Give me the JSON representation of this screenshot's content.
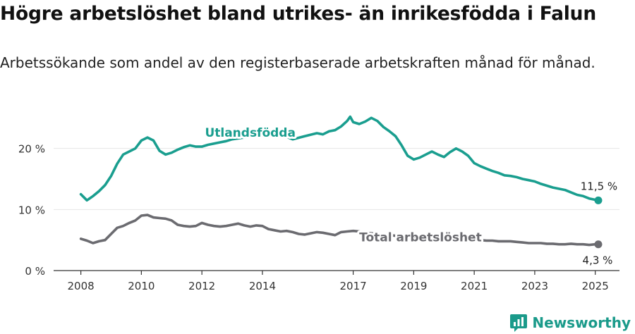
{
  "title": "Högre arbetslöshet bland utrikes- än inrikesfödda i Falun",
  "subtitle": "Arbetssökande som andel av den registerbaserade arbetskraften månad för månad.",
  "brand": {
    "name": "Newsworthy"
  },
  "colors": {
    "foreign_born": "#1a9e8f",
    "total": "#6b6b70",
    "axis": "#333333",
    "grid": "#e6e6e6"
  },
  "chart_data": {
    "type": "line",
    "x_unit": "year",
    "x_ticks": [
      2008,
      2010,
      2012,
      2014,
      2017,
      2019,
      2021,
      2023,
      2025
    ],
    "x_tick_labels": [
      "2008",
      "2010",
      "2012",
      "2014",
      "2017",
      "2019",
      "2021",
      "2023",
      "2025"
    ],
    "xlim": [
      2007.1,
      2025.8
    ],
    "ylim": [
      0,
      24
    ],
    "y_ticks": [
      0,
      10,
      20
    ],
    "y_tick_labels": [
      "0 %",
      "10 %",
      "20 %"
    ],
    "grid": false,
    "series": [
      {
        "name": "Utlandsfödda",
        "color": "#1a9e8f",
        "end_label": "11,5 %",
        "x": [
          2008.0,
          2008.2,
          2008.4,
          2008.6,
          2008.8,
          2009.0,
          2009.2,
          2009.4,
          2009.6,
          2009.8,
          2010.0,
          2010.2,
          2010.4,
          2010.6,
          2010.8,
          2011.0,
          2011.2,
          2011.4,
          2011.6,
          2011.8,
          2012.0,
          2012.2,
          2012.4,
          2012.6,
          2012.8,
          2013.0,
          2013.4,
          2013.8,
          2014.2,
          2014.6,
          2015.0,
          2015.4,
          2015.8,
          2016.0,
          2016.2,
          2016.4,
          2016.6,
          2016.8,
          2016.9,
          2017.0,
          2017.2,
          2017.4,
          2017.6,
          2017.8,
          2018.0,
          2018.2,
          2018.4,
          2018.6,
          2018.8,
          2019.0,
          2019.2,
          2019.4,
          2019.6,
          2019.8,
          2020.0,
          2020.2,
          2020.4,
          2020.6,
          2020.8,
          2021.0,
          2021.2,
          2021.4,
          2021.6,
          2021.8,
          2022.0,
          2022.2,
          2022.4,
          2022.6,
          2022.8,
          2023.0,
          2023.2,
          2023.4,
          2023.6,
          2023.8,
          2024.0,
          2024.2,
          2024.4,
          2024.6,
          2024.8,
          2025.0,
          2025.1
        ],
        "y": [
          12.5,
          11.5,
          12.2,
          13.0,
          14.0,
          15.5,
          17.5,
          19.0,
          19.5,
          20.0,
          21.3,
          21.8,
          21.3,
          19.6,
          19.0,
          19.3,
          19.8,
          20.2,
          20.5,
          20.3,
          20.3,
          20.6,
          20.8,
          21.0,
          21.2,
          21.5,
          21.8,
          22.0,
          22.2,
          22.3,
          21.5,
          22.0,
          22.5,
          22.3,
          22.8,
          23.0,
          23.6,
          24.5,
          25.2,
          24.3,
          24.0,
          24.4,
          25.0,
          24.5,
          23.5,
          22.8,
          22.0,
          20.5,
          18.8,
          18.2,
          18.5,
          19.0,
          19.5,
          19.0,
          18.6,
          19.4,
          20.0,
          19.5,
          18.8,
          17.6,
          17.1,
          16.7,
          16.3,
          16.0,
          15.6,
          15.5,
          15.3,
          15.0,
          14.8,
          14.6,
          14.2,
          13.9,
          13.6,
          13.4,
          13.2,
          12.8,
          12.4,
          12.2,
          11.8,
          11.6,
          11.5
        ]
      },
      {
        "name": "Total arbetslöshet",
        "color": "#6b6b70",
        "end_label": "4,3 %",
        "x": [
          2008.0,
          2008.2,
          2008.4,
          2008.6,
          2008.8,
          2009.0,
          2009.2,
          2009.4,
          2009.6,
          2009.8,
          2010.0,
          2010.2,
          2010.4,
          2010.6,
          2010.8,
          2011.0,
          2011.2,
          2011.4,
          2011.6,
          2011.8,
          2012.0,
          2012.2,
          2012.4,
          2012.6,
          2012.8,
          2013.0,
          2013.2,
          2013.4,
          2013.6,
          2013.8,
          2014.0,
          2014.2,
          2014.4,
          2014.6,
          2014.8,
          2015.0,
          2015.2,
          2015.4,
          2015.6,
          2015.8,
          2016.0,
          2016.2,
          2016.4,
          2016.6,
          2016.8,
          2017.0,
          2017.2,
          2017.4,
          2017.6,
          2017.8,
          2018.0,
          2018.2,
          2018.4,
          2018.6,
          2018.8,
          2019.0,
          2019.2,
          2019.4,
          2019.6,
          2019.8,
          2020.0,
          2020.2,
          2020.4,
          2020.6,
          2020.8,
          2021.0,
          2021.2,
          2021.4,
          2021.6,
          2021.8,
          2022.0,
          2022.2,
          2022.4,
          2022.6,
          2022.8,
          2023.0,
          2023.2,
          2023.4,
          2023.6,
          2023.8,
          2024.0,
          2024.2,
          2024.4,
          2024.6,
          2024.8,
          2025.0,
          2025.1
        ],
        "y": [
          5.2,
          4.9,
          4.5,
          4.8,
          5.0,
          6.0,
          7.0,
          7.3,
          7.8,
          8.2,
          9.0,
          9.1,
          8.7,
          8.6,
          8.5,
          8.2,
          7.5,
          7.3,
          7.2,
          7.3,
          7.8,
          7.5,
          7.3,
          7.2,
          7.3,
          7.5,
          7.7,
          7.4,
          7.2,
          7.4,
          7.3,
          6.8,
          6.6,
          6.4,
          6.5,
          6.3,
          6.0,
          5.9,
          6.1,
          6.3,
          6.2,
          6.0,
          5.8,
          6.3,
          6.4,
          6.5,
          6.4,
          6.2,
          6.1,
          6.0,
          5.9,
          5.8,
          5.7,
          5.5,
          5.4,
          5.3,
          5.2,
          5.3,
          5.3,
          5.2,
          5.2,
          5.1,
          5.2,
          5.3,
          5.2,
          5.1,
          5.0,
          4.9,
          4.9,
          4.8,
          4.8,
          4.8,
          4.7,
          4.6,
          4.5,
          4.5,
          4.5,
          4.4,
          4.4,
          4.3,
          4.3,
          4.4,
          4.3,
          4.3,
          4.2,
          4.3,
          4.3
        ]
      }
    ]
  }
}
